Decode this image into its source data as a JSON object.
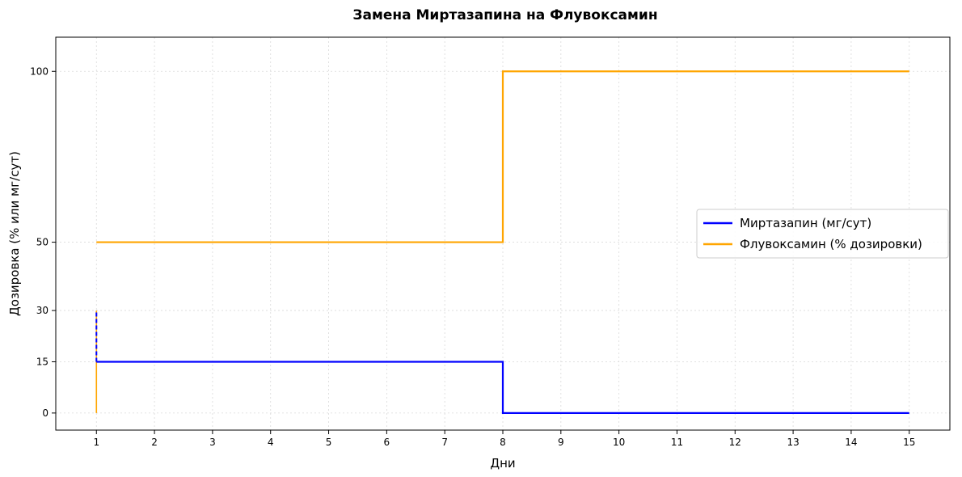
{
  "chart_data": {
    "type": "line",
    "title": "Замена Миртазапина на Флувоксамин",
    "xlabel": "Дни",
    "ylabel": "Дозировка (% или мг/сут)",
    "xlim": [
      0.3,
      15.7
    ],
    "ylim": [
      -5,
      110
    ],
    "xticks": [
      1,
      2,
      3,
      4,
      5,
      6,
      7,
      8,
      9,
      10,
      11,
      12,
      13,
      14,
      15
    ],
    "yticks": [
      0,
      15,
      30,
      50,
      100
    ],
    "grid": true,
    "legend_position": "center-right",
    "series": [
      {
        "name": "Миртазапин (мг/сут)",
        "color": "#0000ff",
        "step": "post",
        "points": [
          [
            1,
            15
          ],
          [
            8,
            0
          ],
          [
            15,
            0
          ]
        ]
      },
      {
        "name": "Флувоксамин (% дозировки)",
        "color": "#ffa500",
        "step": "post",
        "points": [
          [
            1,
            50
          ],
          [
            8,
            100
          ],
          [
            15,
            100
          ]
        ]
      }
    ],
    "annotations": [
      {
        "type": "vertical-line",
        "series": "Флувоксамин (% дозировки)",
        "x": 1,
        "y_from": 0,
        "y_to": 30,
        "color": "#ffa500",
        "style": "solid"
      },
      {
        "type": "vertical-line",
        "series": "Миртазапин (мг/сут)",
        "x": 1,
        "y_from": 15,
        "y_to": 30,
        "color": "#0000ff",
        "style": "dashed"
      }
    ]
  }
}
